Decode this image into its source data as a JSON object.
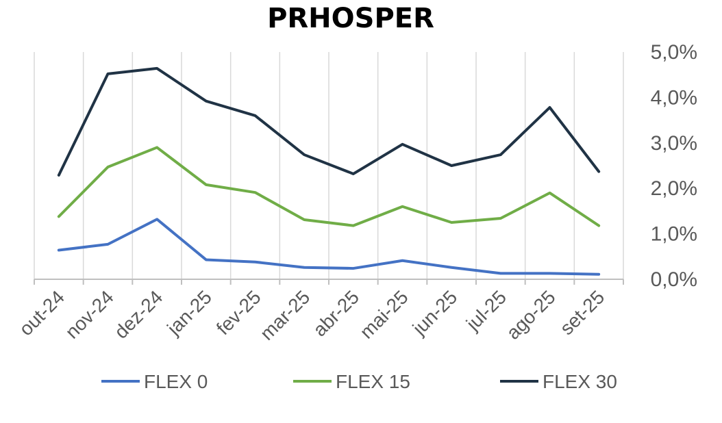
{
  "chart_data": {
    "type": "line",
    "title": "PRHOSPER",
    "categories": [
      "out-24",
      "nov-24",
      "dez-24",
      "jan-25",
      "fev-25",
      "mar-25",
      "abr-25",
      "mai-25",
      "jun-25",
      "jul-25",
      "ago-25",
      "set-25"
    ],
    "ylim": [
      0,
      5
    ],
    "ytick_labels": [
      "0,0%",
      "1,0%",
      "2,0%",
      "3,0%",
      "4,0%",
      "5,0%"
    ],
    "y_axis_side": "right",
    "grid": "vertical",
    "legend_position": "bottom",
    "series": [
      {
        "name": "FLEX 0",
        "color": "#4472C4",
        "values": [
          0.64,
          0.77,
          1.32,
          0.43,
          0.38,
          0.26,
          0.24,
          0.41,
          0.26,
          0.13,
          0.13,
          0.11
        ]
      },
      {
        "name": "FLEX 15",
        "color": "#70AD47",
        "values": [
          1.38,
          2.47,
          2.9,
          2.08,
          1.91,
          1.31,
          1.18,
          1.6,
          1.25,
          1.34,
          1.9,
          1.18
        ]
      },
      {
        "name": "FLEX 30",
        "color": "#203345",
        "values": [
          2.29,
          4.52,
          4.64,
          3.92,
          3.6,
          2.74,
          2.32,
          2.97,
          2.5,
          2.74,
          3.78,
          2.37
        ]
      }
    ]
  }
}
